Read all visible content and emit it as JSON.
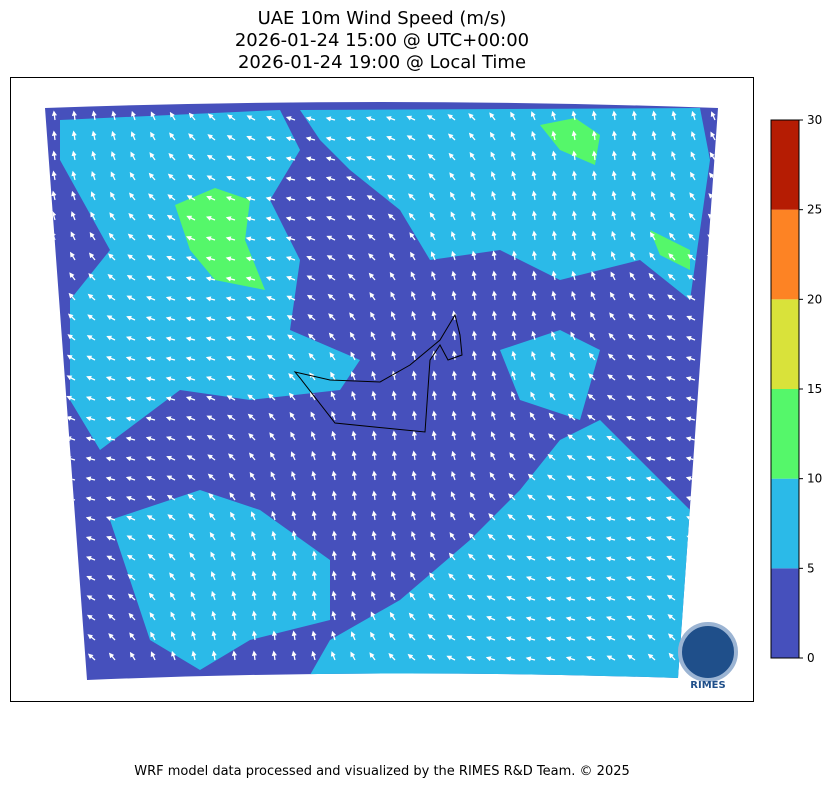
{
  "title": {
    "lines": [
      "UAE 10m Wind Speed (m/s)",
      "2026-01-24 15:00 @ UTC+00:00",
      "2026-01-24 19:00 @ Local Time"
    ]
  },
  "colorbar": {
    "lim": [
      0,
      30
    ],
    "ticks": [
      0,
      5,
      10,
      15,
      20,
      25,
      30
    ],
    "colors": [
      "#4650bc",
      "#2bbae8",
      "#55f76a",
      "#d9e23a",
      "#fd8324",
      "#b51c03"
    ]
  },
  "footer": "WRF model data processed and visualized by the RIMES R&D Team. © 2025",
  "logo": {
    "text": "RIMES"
  }
}
